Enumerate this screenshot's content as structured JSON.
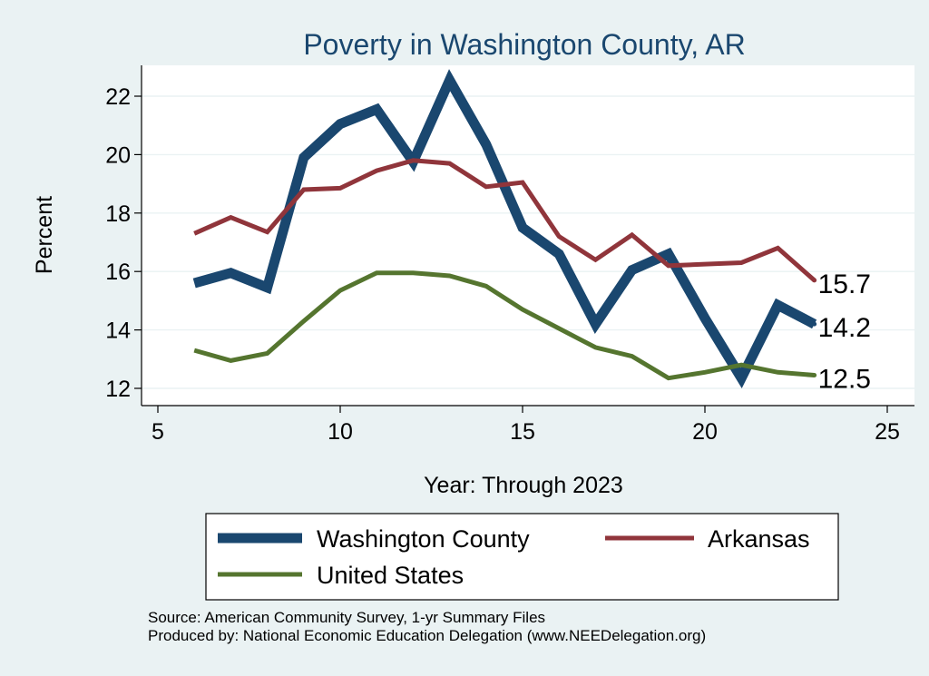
{
  "chart_data": {
    "type": "line",
    "title": "Poverty in Washington County, AR",
    "xlabel": "Year: Through 2023",
    "ylabel": "Percent",
    "xlim": [
      5,
      25
    ],
    "ylim": [
      11.5,
      23
    ],
    "x_ticks": [
      5,
      10,
      15,
      20,
      25
    ],
    "y_ticks": [
      12,
      14,
      16,
      18,
      20,
      22
    ],
    "grid": true,
    "series": [
      {
        "name": "Washington County",
        "color": "#1a476f",
        "x": [
          6,
          7,
          8,
          9,
          10,
          11,
          12,
          13,
          14,
          15,
          16,
          17,
          18,
          19,
          20,
          21,
          22,
          23
        ],
        "values": [
          15.6,
          15.95,
          15.45,
          19.9,
          21.05,
          21.55,
          19.75,
          22.55,
          20.35,
          17.5,
          16.6,
          14.2,
          16.05,
          16.6,
          14.4,
          12.35,
          14.85,
          14.2
        ],
        "end_label": "14.2"
      },
      {
        "name": "Arkansas",
        "color": "#90353b",
        "x": [
          6,
          7,
          8,
          9,
          10,
          11,
          12,
          13,
          14,
          15,
          16,
          17,
          18,
          19,
          20,
          21,
          22,
          23
        ],
        "values": [
          17.3,
          17.85,
          17.35,
          18.8,
          18.85,
          19.45,
          19.8,
          19.7,
          18.9,
          19.05,
          17.2,
          16.4,
          17.25,
          16.2,
          16.25,
          16.3,
          16.8,
          15.7
        ],
        "end_label": "15.7"
      },
      {
        "name": "United States",
        "color": "#55752f",
        "x": [
          6,
          7,
          8,
          9,
          10,
          11,
          12,
          13,
          14,
          15,
          16,
          17,
          18,
          19,
          20,
          21,
          22,
          23
        ],
        "values": [
          13.3,
          12.95,
          13.2,
          14.3,
          15.35,
          15.95,
          15.95,
          15.85,
          15.5,
          14.7,
          14.05,
          13.4,
          13.1,
          12.35,
          12.55,
          12.8,
          12.55,
          12.45
        ],
        "end_label": "12.5"
      }
    ],
    "legend_position": "bottom"
  },
  "source": {
    "line1": "Source: American Community Survey, 1-yr Summary Files",
    "line2": "Produced by: National Economic Education Delegation (www.NEEDelegation.org)"
  },
  "colors": {
    "outer_background": "#eaf2f3",
    "plot_background": "#ffffff",
    "grid": "#eaf2f3",
    "title": "#1a476f"
  }
}
